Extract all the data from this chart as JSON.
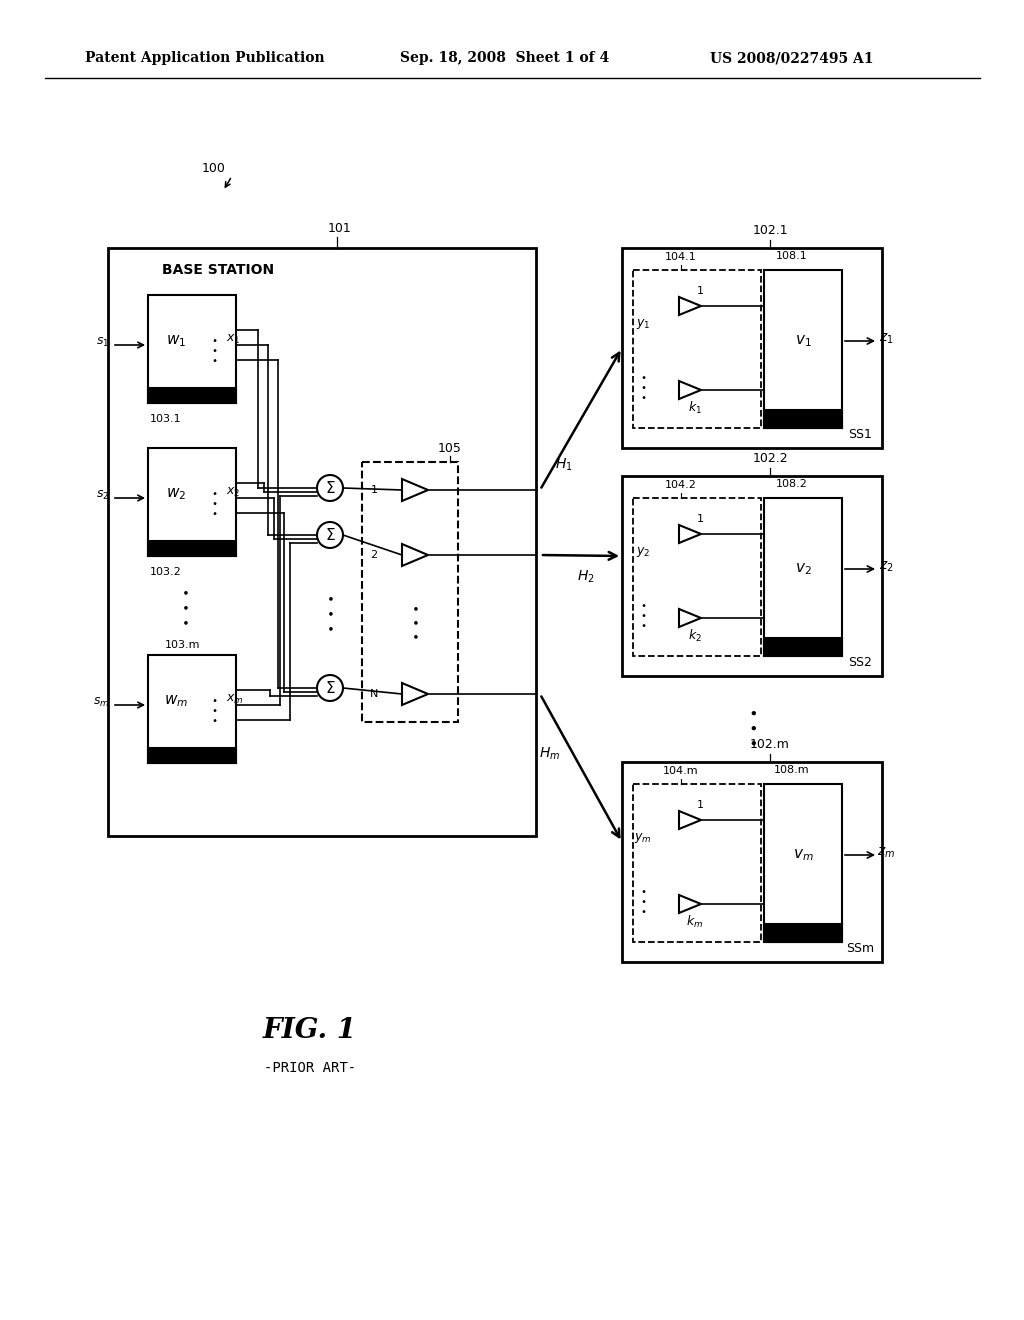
{
  "background_color": "#ffffff",
  "header_left": "Patent Application Publication",
  "header_mid": "Sep. 18, 2008  Sheet 1 of 4",
  "header_right": "US 2008/0227495 A1"
}
